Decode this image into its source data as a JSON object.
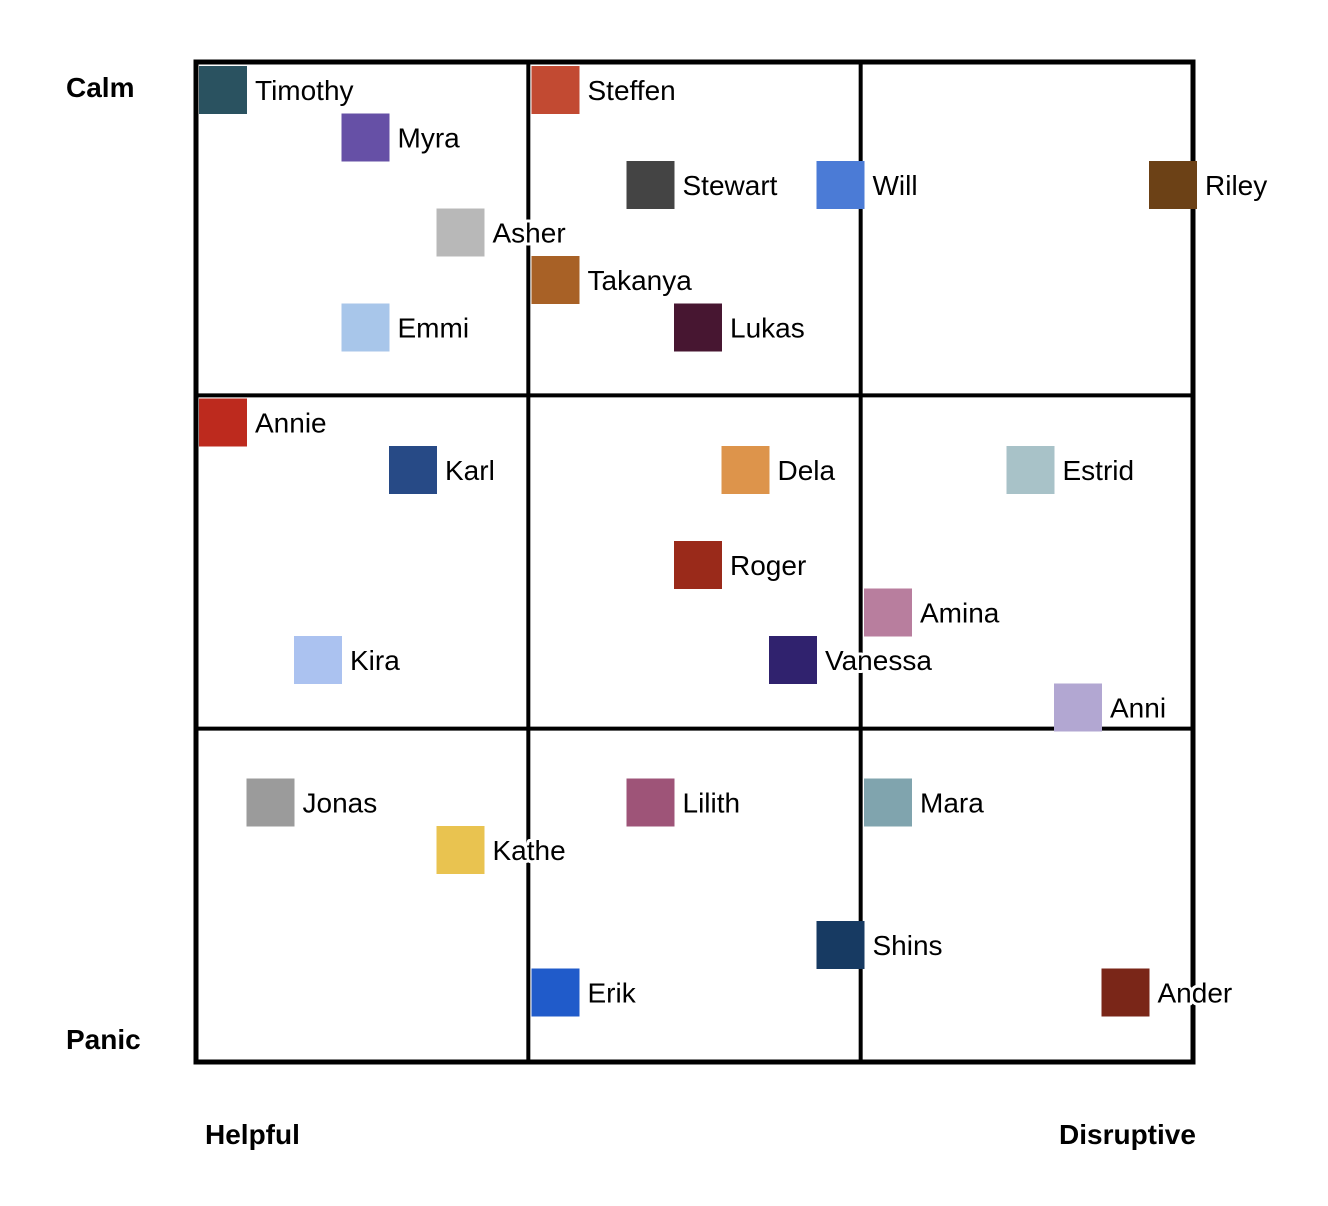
{
  "axes": {
    "y_top": "Calm",
    "y_bottom": "Panic",
    "x_left": "Helpful",
    "x_right": "Disruptive"
  },
  "chart_data": {
    "type": "scatter",
    "grid": "3x3",
    "xlabel_left": "Helpful",
    "xlabel_right": "Disruptive",
    "ylabel_top": "Calm",
    "ylabel_bottom": "Panic",
    "xlim": [
      0,
      21
    ],
    "ylim": [
      0,
      21
    ],
    "points": [
      {
        "name": "Timothy",
        "x": 0,
        "y": 21,
        "color": "#2a5260"
      },
      {
        "name": "Steffen",
        "x": 7,
        "y": 21,
        "color": "#c24a32"
      },
      {
        "name": "Myra",
        "x": 3,
        "y": 20,
        "color": "#6650a6"
      },
      {
        "name": "Stewart",
        "x": 9,
        "y": 19,
        "color": "#444444"
      },
      {
        "name": "Will",
        "x": 13,
        "y": 19,
        "color": "#4b7bd6"
      },
      {
        "name": "Riley",
        "x": 20,
        "y": 19,
        "color": "#6c4116"
      },
      {
        "name": "Asher",
        "x": 5,
        "y": 18,
        "color": "#b8b8b8"
      },
      {
        "name": "Takanya",
        "x": 7,
        "y": 17,
        "color": "#a86126"
      },
      {
        "name": "Emmi",
        "x": 3,
        "y": 16,
        "color": "#a8c6ea"
      },
      {
        "name": "Lukas",
        "x": 10,
        "y": 16,
        "color": "#471631"
      },
      {
        "name": "Annie",
        "x": 0,
        "y": 14,
        "color": "#bd2a1e"
      },
      {
        "name": "Karl",
        "x": 4,
        "y": 13,
        "color": "#274a86"
      },
      {
        "name": "Dela",
        "x": 11,
        "y": 13,
        "color": "#dd944b"
      },
      {
        "name": "Estrid",
        "x": 17,
        "y": 13,
        "color": "#a8c2c8"
      },
      {
        "name": "Roger",
        "x": 10,
        "y": 11,
        "color": "#9a2a1a"
      },
      {
        "name": "Amina",
        "x": 14,
        "y": 10,
        "color": "#b87e9e"
      },
      {
        "name": "Kira",
        "x": 2,
        "y": 9,
        "color": "#abc2f0"
      },
      {
        "name": "Vanessa",
        "x": 12,
        "y": 9,
        "color": "#30226e"
      },
      {
        "name": "Anni",
        "x": 18,
        "y": 8,
        "color": "#b2a7d2"
      },
      {
        "name": "Jonas",
        "x": 1,
        "y": 6,
        "color": "#9b9b9b"
      },
      {
        "name": "Lilith",
        "x": 9,
        "y": 6,
        "color": "#9e5478"
      },
      {
        "name": "Mara",
        "x": 14,
        "y": 6,
        "color": "#80a4ae"
      },
      {
        "name": "Kathe",
        "x": 5,
        "y": 5,
        "color": "#e9c350"
      },
      {
        "name": "Shins",
        "x": 13,
        "y": 3,
        "color": "#173a62"
      },
      {
        "name": "Erik",
        "x": 7,
        "y": 2,
        "color": "#205bca"
      },
      {
        "name": "Ander",
        "x": 19,
        "y": 2,
        "color": "#7a2618"
      }
    ]
  }
}
